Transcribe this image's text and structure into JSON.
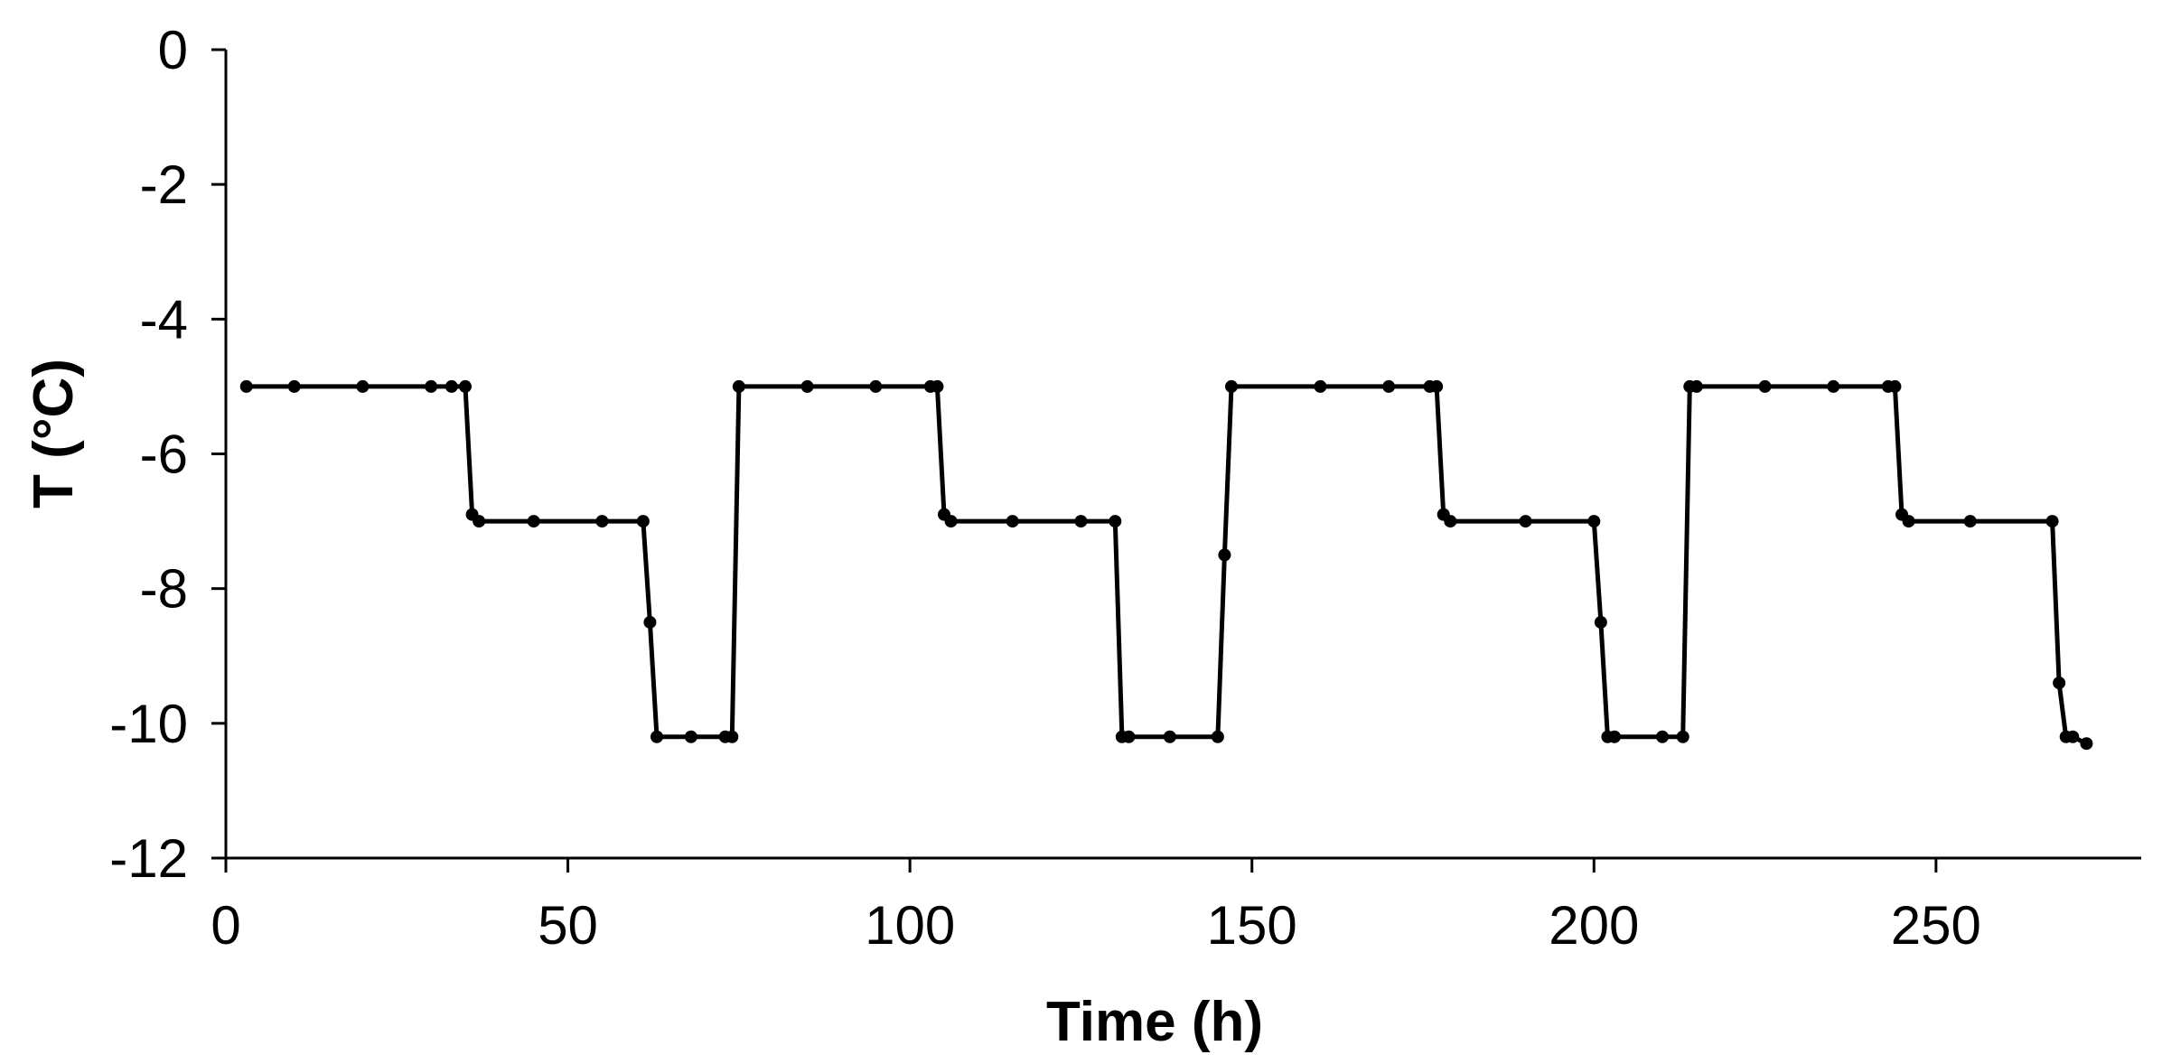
{
  "chart_data": {
    "type": "line",
    "title": "",
    "xlabel": "Time (h)",
    "ylabel": "T (°C)",
    "xlim": [
      0,
      280
    ],
    "ylim": [
      -12,
      0
    ],
    "xticks": [
      0,
      50,
      100,
      150,
      200,
      250
    ],
    "yticks": [
      0,
      -2,
      -4,
      -6,
      -8,
      -10,
      -12
    ],
    "grid": false,
    "legend": "none",
    "series": [
      {
        "name": "T",
        "color": "#000000",
        "marker": "circle",
        "x": [
          3,
          10,
          20,
          30,
          33,
          35,
          36,
          37,
          45,
          55,
          61,
          62,
          63,
          68,
          73,
          74,
          75,
          85,
          95,
          103,
          104,
          105,
          106,
          115,
          125,
          130,
          131,
          132,
          138,
          145,
          146,
          147,
          160,
          170,
          176,
          177,
          178,
          179,
          190,
          200,
          201,
          202,
          203,
          210,
          213,
          214,
          215,
          225,
          235,
          243,
          244,
          245,
          246,
          255,
          267,
          268,
          269,
          270,
          272
        ],
        "y": [
          -5.0,
          -5.0,
          -5.0,
          -5.0,
          -5.0,
          -5.0,
          -6.9,
          -7.0,
          -7.0,
          -7.0,
          -7.0,
          -8.5,
          -10.2,
          -10.2,
          -10.2,
          -10.2,
          -5.0,
          -5.0,
          -5.0,
          -5.0,
          -5.0,
          -6.9,
          -7.0,
          -7.0,
          -7.0,
          -7.0,
          -10.2,
          -10.2,
          -10.2,
          -10.2,
          -7.5,
          -5.0,
          -5.0,
          -5.0,
          -5.0,
          -5.0,
          -6.9,
          -7.0,
          -7.0,
          -7.0,
          -8.5,
          -10.2,
          -10.2,
          -10.2,
          -10.2,
          -5.0,
          -5.0,
          -5.0,
          -5.0,
          -5.0,
          -5.0,
          -6.9,
          -7.0,
          -7.0,
          -7.0,
          -9.4,
          -10.2,
          -10.2,
          -10.3
        ]
      }
    ]
  }
}
